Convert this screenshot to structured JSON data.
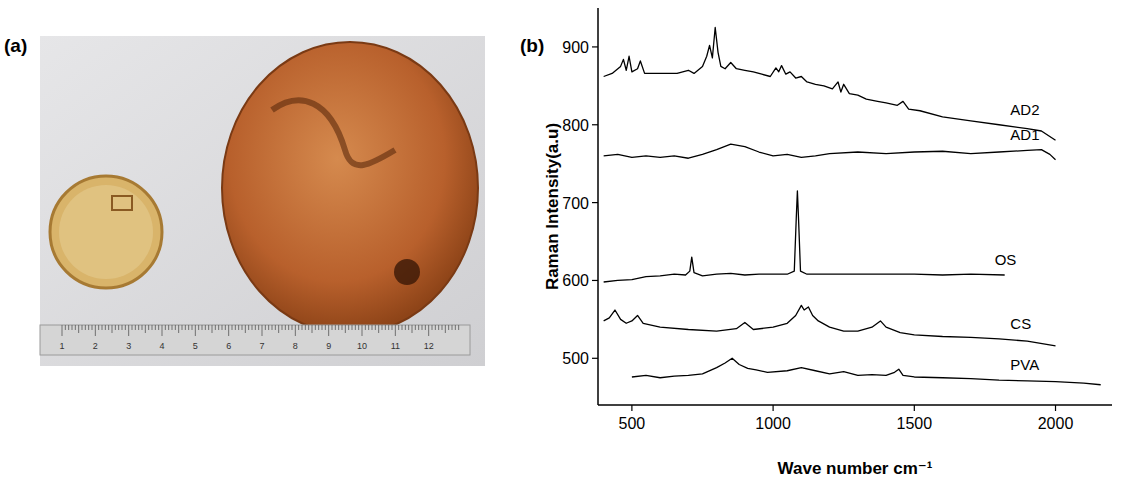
{
  "photo": {
    "panel_label": "(a)",
    "ruler_labels": [
      1,
      2,
      3,
      4,
      5,
      6,
      7,
      8,
      9,
      10,
      11,
      12
    ]
  },
  "chart_data": {
    "type": "line",
    "panel_label": "(b)",
    "x_label": "Wave number  cm⁻¹",
    "y_label": "Raman Intensity(a.u)",
    "xlim": [
      380,
      2200
    ],
    "xticks": [
      500,
      1000,
      1500,
      2000
    ],
    "ylim": [
      440,
      950
    ],
    "yticks": [
      500,
      600,
      700,
      800,
      900
    ],
    "grid": false,
    "series": [
      {
        "name": "AD2",
        "color": "#000000",
        "x": [
          400,
          430,
          460,
          470,
          480,
          490,
          500,
          520,
          530,
          545,
          580,
          620,
          660,
          700,
          720,
          750,
          765,
          775,
          785,
          795,
          805,
          815,
          830,
          850,
          870,
          900,
          930,
          960,
          990,
          1010,
          1020,
          1030,
          1045,
          1060,
          1080,
          1100,
          1120,
          1150,
          1180,
          1210,
          1230,
          1240,
          1250,
          1270,
          1300,
          1330,
          1370,
          1400,
          1440,
          1460,
          1480,
          1520,
          1600,
          1700,
          1800,
          1900,
          1950,
          2000
        ],
        "values": [
          862,
          866,
          875,
          884,
          870,
          888,
          868,
          872,
          882,
          866,
          866,
          866,
          866,
          870,
          866,
          875,
          888,
          902,
          886,
          925,
          893,
          875,
          872,
          880,
          872,
          870,
          868,
          865,
          862,
          873,
          868,
          876,
          865,
          868,
          860,
          862,
          855,
          852,
          850,
          846,
          855,
          842,
          852,
          840,
          838,
          833,
          830,
          828,
          825,
          830,
          820,
          818,
          810,
          805,
          800,
          795,
          792,
          780
        ]
      },
      {
        "name": "AD1",
        "color": "#000000",
        "x": [
          400,
          450,
          500,
          550,
          600,
          650,
          700,
          750,
          800,
          850,
          900,
          950,
          1000,
          1050,
          1100,
          1150,
          1200,
          1300,
          1400,
          1500,
          1600,
          1700,
          1800,
          1900,
          1950,
          1980,
          2000
        ],
        "values": [
          760,
          762,
          758,
          760,
          758,
          760,
          757,
          762,
          768,
          775,
          772,
          765,
          760,
          762,
          758,
          760,
          763,
          765,
          763,
          765,
          766,
          763,
          765,
          767,
          768,
          762,
          755
        ]
      },
      {
        "name": "OS",
        "color": "#000000",
        "x": [
          400,
          450,
          500,
          550,
          600,
          650,
          690,
          705,
          712,
          720,
          750,
          800,
          850,
          900,
          950,
          1000,
          1050,
          1075,
          1082,
          1086,
          1090,
          1097,
          1120,
          1200,
          1300,
          1400,
          1500,
          1600,
          1700,
          1820
        ],
        "values": [
          598,
          600,
          601,
          605,
          606,
          608,
          607,
          612,
          630,
          610,
          606,
          608,
          609,
          607,
          608,
          608,
          608,
          612,
          680,
          715,
          680,
          612,
          608,
          608,
          608,
          608,
          608,
          607,
          608,
          607
        ]
      },
      {
        "name": "CS",
        "color": "#000000",
        "x": [
          400,
          420,
          440,
          460,
          480,
          500,
          520,
          540,
          600,
          700,
          800,
          870,
          900,
          930,
          1000,
          1050,
          1080,
          1100,
          1110,
          1125,
          1140,
          1160,
          1200,
          1250,
          1300,
          1350,
          1380,
          1400,
          1450,
          1500,
          1600,
          1700,
          1800,
          1900,
          2000
        ],
        "values": [
          548,
          552,
          562,
          550,
          545,
          548,
          555,
          545,
          540,
          537,
          535,
          538,
          546,
          537,
          540,
          545,
          555,
          568,
          562,
          566,
          555,
          548,
          540,
          535,
          535,
          540,
          548,
          540,
          533,
          530,
          528,
          527,
          525,
          522,
          516
        ]
      },
      {
        "name": "PVA",
        "color": "#000000",
        "x": [
          500,
          550,
          600,
          650,
          700,
          750,
          800,
          830,
          855,
          880,
          910,
          940,
          980,
          1050,
          1100,
          1150,
          1200,
          1250,
          1300,
          1350,
          1400,
          1430,
          1445,
          1460,
          1500,
          1600,
          1700,
          1800,
          1900,
          2000,
          2100,
          2160
        ],
        "values": [
          476,
          478,
          475,
          477,
          478,
          480,
          488,
          494,
          500,
          492,
          487,
          485,
          482,
          484,
          488,
          484,
          480,
          483,
          478,
          479,
          478,
          482,
          486,
          478,
          476,
          475,
          474,
          472,
          471,
          470,
          468,
          466
        ]
      }
    ]
  }
}
